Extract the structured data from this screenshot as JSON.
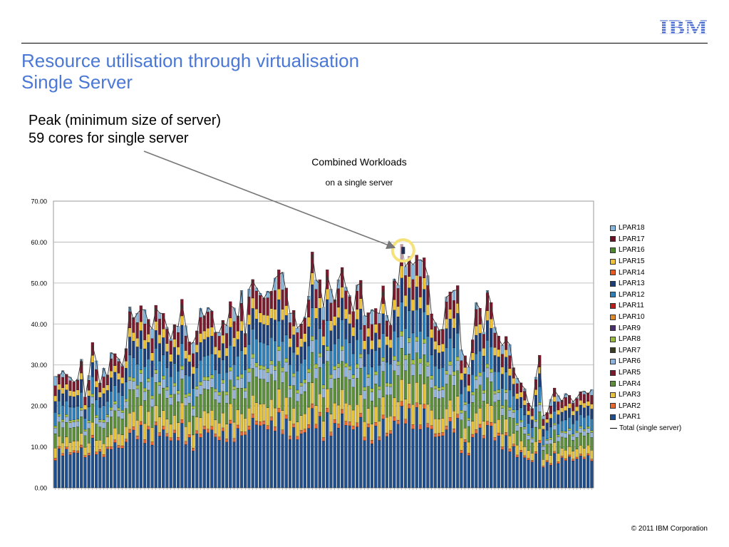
{
  "slide": {
    "title_line1": "Resource utilisation through virtualisation",
    "title_line2": "Single Server",
    "callout_line1": "Peak (minimum size of server)",
    "callout_line2": "59 cores for single server",
    "copyright": "© 2011 IBM Corporation",
    "logo_text": "IBM",
    "colors": {
      "title": "#4b78d6",
      "logo": "#3a5fc8",
      "highlight": "#f5e27a"
    }
  },
  "chart_data": {
    "type": "bar",
    "stacked": true,
    "title": "Combined Workloads",
    "subtitle": "on a single server",
    "xlabel": "",
    "ylabel": "",
    "ylim": [
      0,
      70
    ],
    "y_ticks": [
      "0.00",
      "10.00",
      "20.00",
      "30.00",
      "40.00",
      "50.00",
      "60.00",
      "70.00"
    ],
    "grid": true,
    "legend_position": "right",
    "peak_value": 59,
    "n_categories": 145,
    "totals": [
      27.2,
      27.1,
      28.6,
      27.3,
      27.0,
      25.8,
      26.5,
      31.4,
      22.0,
      27.4,
      34.8,
      31.0,
      25.0,
      29.2,
      27.0,
      33.0,
      32.4,
      31.5,
      29.8,
      34.0,
      44.2,
      41.0,
      42.6,
      43.5,
      43.5,
      40.2,
      38.8,
      43.8,
      42.7,
      42.4,
      39.2,
      36.4,
      39.6,
      39.4,
      45.2,
      39.6,
      34.8,
      35.5,
      37.5,
      43.8,
      41.5,
      44.0,
      43.2,
      38.0,
      37.9,
      40.4,
      39.6,
      44.5,
      43.9,
      41.0,
      48.2,
      37.0,
      48.5,
      50.5,
      48.8,
      47.5,
      46.2,
      48.0,
      47.2,
      51.2,
      52.0,
      52.6,
      47.7,
      42.6,
      42.7,
      39.0,
      40.0,
      41.7,
      46.8,
      57.0,
      50.7,
      49.8,
      44.1,
      52.0,
      48.5,
      45.0,
      50.8,
      53.3,
      49.0,
      47.0,
      43.0,
      49.5,
      49.9,
      42.0,
      41.8,
      43.5,
      42.8,
      42.6,
      48.5,
      42.1,
      39.6,
      51.0,
      49.5,
      59.0,
      54.0,
      55.5,
      54.5,
      55.5,
      55.7,
      55.0,
      51.8,
      42.0,
      40.3,
      38.5,
      38.7,
      46.6,
      47.2,
      48.2,
      48.3,
      33.7,
      31.5,
      29.5,
      35.5,
      45.2,
      43.6,
      38.0,
      48.2,
      45.0,
      39.2,
      36.4,
      34.8,
      36.1,
      35.0,
      28.7,
      26.8,
      25.3,
      24.2,
      20.7,
      19.4,
      27.0,
      32.0,
      17.6,
      18.0,
      21.6,
      23.8,
      22.5,
      21.0,
      23.0,
      22.4,
      21.0,
      22.0,
      23.4,
      23.6,
      22.8,
      24.0
    ],
    "series": [
      {
        "name": "LPAR1",
        "color": "#1f4e8c"
      },
      {
        "name": "LPAR2",
        "color": "#e8692f"
      },
      {
        "name": "LPAR3",
        "color": "#e5c33c"
      },
      {
        "name": "LPAR4",
        "color": "#5b8f3a"
      },
      {
        "name": "LPAR5",
        "color": "#7a1a2c"
      },
      {
        "name": "LPAR6",
        "color": "#8fb4de"
      },
      {
        "name": "LPAR7",
        "color": "#3b3b1f"
      },
      {
        "name": "LPAR8",
        "color": "#9bbb3a"
      },
      {
        "name": "LPAR9",
        "color": "#4a2f6e"
      },
      {
        "name": "LPAR10",
        "color": "#e08a2a"
      },
      {
        "name": "LPAR11",
        "color": "#b81f1f"
      },
      {
        "name": "LPAR12",
        "color": "#2c7fb8"
      },
      {
        "name": "LPAR13",
        "color": "#1b3f7a"
      },
      {
        "name": "LPAR14",
        "color": "#e9581e"
      },
      {
        "name": "LPAR15",
        "color": "#f0c236"
      },
      {
        "name": "LPAR16",
        "color": "#4d8a2e"
      },
      {
        "name": "LPAR17",
        "color": "#6e1025"
      },
      {
        "name": "LPAR18",
        "color": "#84b8e0"
      }
    ],
    "line_series": {
      "name": "Total (single server)",
      "color": "#333333"
    }
  }
}
